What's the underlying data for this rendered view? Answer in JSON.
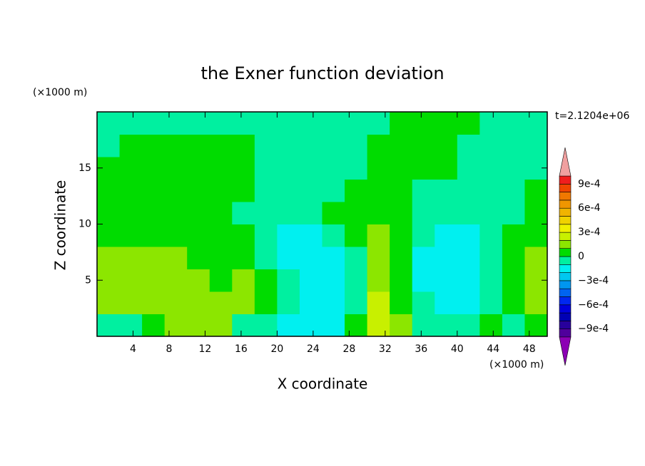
{
  "chart_data": {
    "type": "contour",
    "title": "the Exner function deviation",
    "x_label": "X coordinate",
    "y_label": "Z coordinate",
    "x_unit": "(×1000 m)",
    "y_unit": "(×1000 m)",
    "annotation": "t=2.1204e+06",
    "xlim": [
      0,
      50
    ],
    "ylim": [
      0,
      20
    ],
    "xticks": [
      4,
      8,
      12,
      16,
      20,
      24,
      28,
      32,
      36,
      40,
      44,
      48
    ],
    "yticks": [
      5,
      10,
      15
    ],
    "x": [
      1.25,
      3.75,
      6.25,
      8.75,
      11.25,
      13.75,
      16.25,
      18.75,
      21.25,
      23.75,
      26.25,
      28.75,
      31.25,
      33.75,
      36.25,
      38.75,
      41.25,
      43.75,
      46.25,
      48.75
    ],
    "y": [
      1,
      3,
      5,
      7,
      9,
      11,
      13,
      15,
      17,
      19
    ],
    "z": [
      [
        -5e-05,
        -5e-05,
        5e-05,
        0.00015,
        0.00015,
        0.00015,
        -5e-05,
        -5e-05,
        -0.00015,
        -0.00015,
        -0.00015,
        5e-05,
        0.00025,
        0.00015,
        -5e-05,
        -5e-05,
        -5e-05,
        5e-05,
        -5e-05,
        5e-05
      ],
      [
        0.00015,
        0.00015,
        0.00015,
        0.00015,
        0.00015,
        0.00015,
        0.00015,
        5e-05,
        -5e-05,
        -0.00015,
        -0.00015,
        -5e-05,
        0.00025,
        5e-05,
        -5e-05,
        -0.00015,
        -0.00015,
        -5e-05,
        5e-05,
        0.00015
      ],
      [
        0.00015,
        0.00015,
        0.00015,
        0.00015,
        0.00015,
        5e-05,
        0.00015,
        5e-05,
        -5e-05,
        -0.00015,
        -0.00015,
        -5e-05,
        0.00015,
        5e-05,
        -0.00015,
        -0.00015,
        -0.00015,
        -5e-05,
        5e-05,
        0.00015
      ],
      [
        0.00015,
        0.00015,
        0.00015,
        0.00015,
        5e-05,
        5e-05,
        5e-05,
        -5e-05,
        -0.00015,
        -0.00015,
        -0.00015,
        -5e-05,
        0.00015,
        5e-05,
        -0.00015,
        -0.00015,
        -0.00015,
        -5e-05,
        5e-05,
        0.00015
      ],
      [
        5e-05,
        5e-05,
        5e-05,
        5e-05,
        5e-05,
        5e-05,
        5e-05,
        -5e-05,
        -0.00015,
        -0.00015,
        -5e-05,
        5e-05,
        0.00015,
        5e-05,
        -5e-05,
        -0.00015,
        -0.00015,
        -5e-05,
        5e-05,
        5e-05
      ],
      [
        5e-05,
        5e-05,
        5e-05,
        5e-05,
        5e-05,
        5e-05,
        -5e-05,
        -5e-05,
        -5e-05,
        -5e-05,
        5e-05,
        5e-05,
        5e-05,
        5e-05,
        -5e-05,
        -5e-05,
        -5e-05,
        -5e-05,
        -5e-05,
        5e-05
      ],
      [
        5e-05,
        5e-05,
        5e-05,
        5e-05,
        5e-05,
        5e-05,
        5e-05,
        -5e-05,
        -5e-05,
        -5e-05,
        -5e-05,
        5e-05,
        5e-05,
        5e-05,
        -5e-05,
        -5e-05,
        -5e-05,
        -5e-05,
        -5e-05,
        5e-05
      ],
      [
        5e-05,
        5e-05,
        5e-05,
        5e-05,
        5e-05,
        5e-05,
        5e-05,
        -5e-05,
        -5e-05,
        -5e-05,
        -5e-05,
        -5e-05,
        5e-05,
        5e-05,
        5e-05,
        5e-05,
        -5e-05,
        -5e-05,
        -5e-05,
        -5e-05
      ],
      [
        -5e-05,
        5e-05,
        5e-05,
        5e-05,
        5e-05,
        5e-05,
        5e-05,
        -5e-05,
        -5e-05,
        -5e-05,
        -5e-05,
        -5e-05,
        5e-05,
        5e-05,
        5e-05,
        5e-05,
        -5e-05,
        -5e-05,
        -5e-05,
        -5e-05
      ],
      [
        -5e-05,
        -5e-05,
        -5e-05,
        -5e-05,
        -5e-05,
        -5e-05,
        -5e-05,
        -5e-05,
        -5e-05,
        -5e-05,
        -5e-05,
        -5e-05,
        -5e-05,
        5e-05,
        5e-05,
        5e-05,
        5e-05,
        -5e-05,
        -5e-05,
        -5e-05
      ]
    ],
    "colorbar": {
      "levels": [
        -0.001,
        -0.0009,
        -0.0008,
        -0.0007,
        -0.0006,
        -0.0005,
        -0.0004,
        -0.0003,
        -0.0002,
        -0.0001,
        0,
        0.0001,
        0.0002,
        0.0003,
        0.0004,
        0.0005,
        0.0006,
        0.0007,
        0.0008,
        0.0009,
        0.001
      ],
      "colors": [
        "#50009c",
        "#28009c",
        "#0000b4",
        "#0000dc",
        "#0028f0",
        "#0064f0",
        "#0096f0",
        "#00c8f0",
        "#00f0f0",
        "#00f0a0",
        "#00dc00",
        "#8ce600",
        "#c8f000",
        "#f0f000",
        "#f0d200",
        "#f0b400",
        "#f09600",
        "#f07800",
        "#f04600",
        "#f01e1e"
      ],
      "under_color": "#8c00b4",
      "over_color": "#f0a0a0",
      "ticks": [
        {
          "value": 0.0009,
          "label": "9e-4"
        },
        {
          "value": 0.0006,
          "label": "6e-4"
        },
        {
          "value": 0.0003,
          "label": "3e-4"
        },
        0,
        {
          "value": -0.0003,
          "label": "−3e-4"
        },
        {
          "value": -0.0006,
          "label": "−6e-4"
        },
        {
          "value": -0.0009,
          "label": "−9e-4"
        }
      ]
    }
  }
}
